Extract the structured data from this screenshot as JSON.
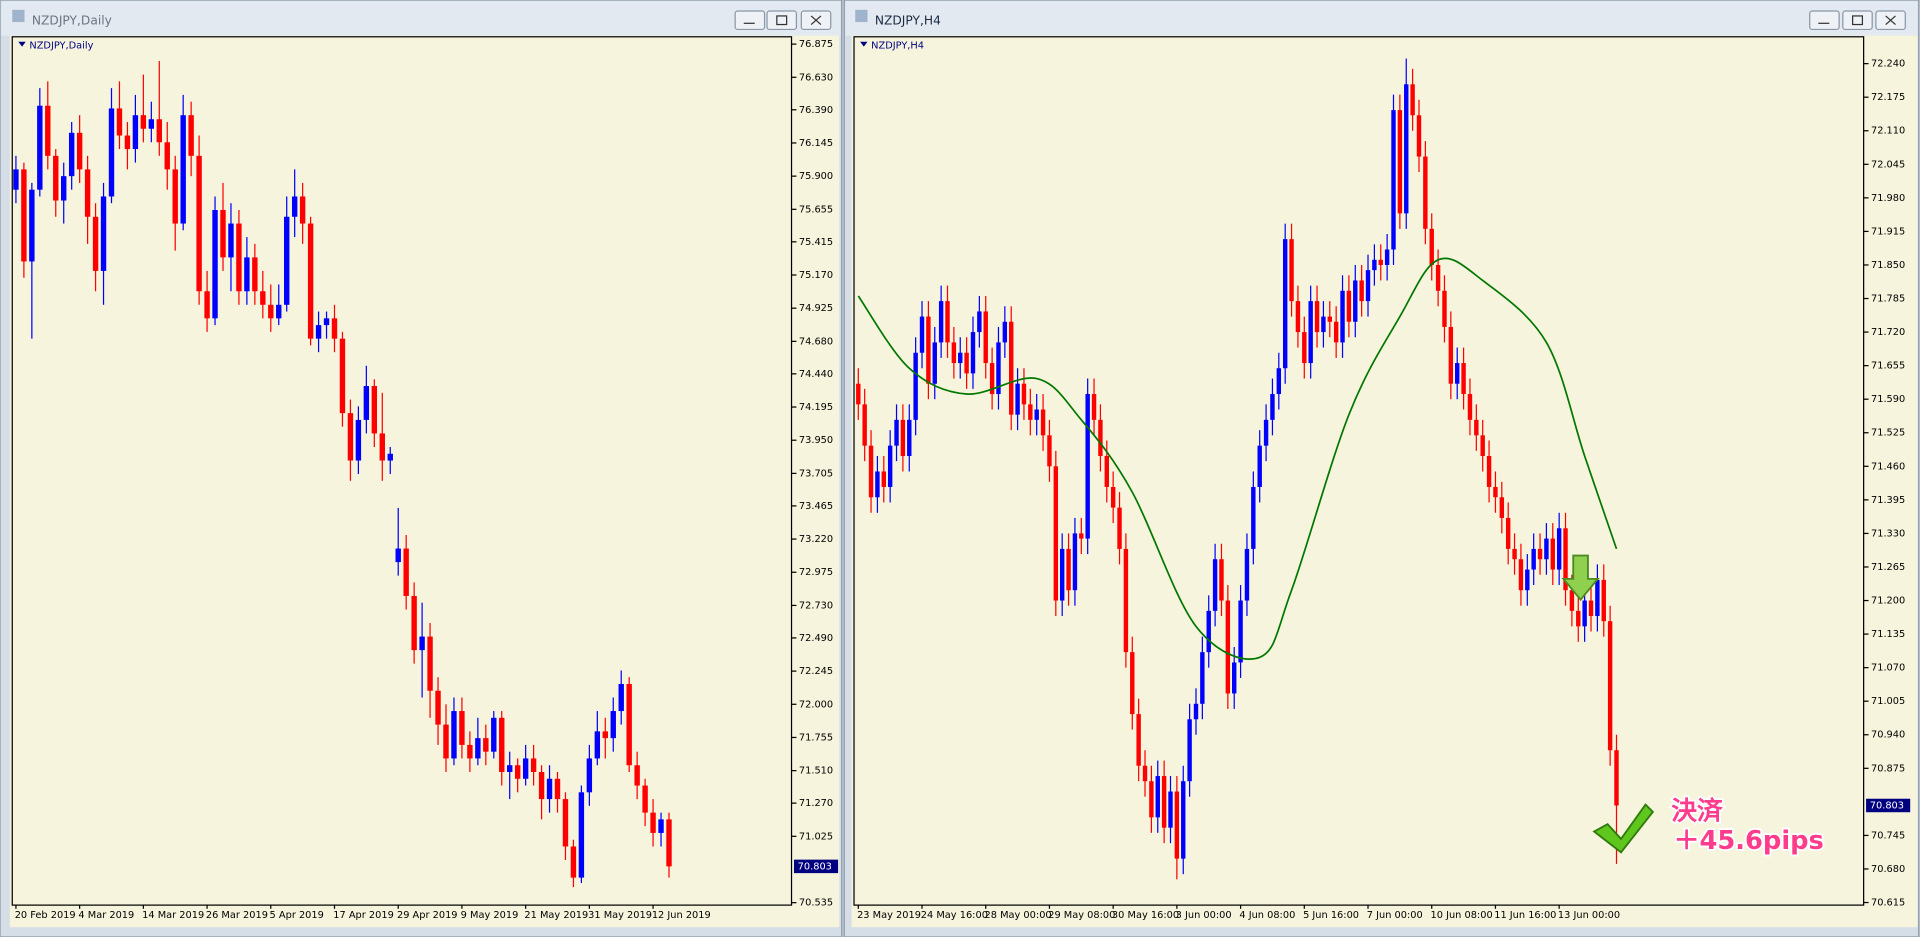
{
  "chart_data": [
    {
      "type": "candlestick",
      "title": "NZDJPY,Daily",
      "colors": {
        "up": "#0000ff",
        "down": "#ff0000"
      },
      "ylim": [
        70.517,
        76.929
      ],
      "yticks": [
        76.875,
        {
          "value": 76.63,
          "label": "76.630"
        },
        {
          "value": 76.39,
          "label": "76.390"
        },
        76.145,
        {
          "value": 75.9,
          "label": "75.900"
        },
        75.655,
        75.415,
        {
          "value": 75.17,
          "label": "75.170"
        },
        74.925,
        {
          "value": 74.68,
          "label": "74.680"
        },
        {
          "value": 74.44,
          "label": "74.440"
        },
        74.195,
        {
          "value": 73.95,
          "label": "73.950"
        },
        73.705,
        73.465,
        {
          "value": 73.22,
          "label": "73.220"
        },
        72.975,
        {
          "value": 72.73,
          "label": "72.730"
        },
        {
          "value": 72.49,
          "label": "72.490"
        },
        72.245,
        {
          "value": 72,
          "label": "72.000"
        },
        71.755,
        {
          "value": 71.51,
          "label": "71.510"
        },
        {
          "value": 71.27,
          "label": "71.270"
        },
        71.025,
        70.535
      ],
      "current_price": 70.803,
      "categories": [
        "20 Feb 2019",
        null,
        null,
        null,
        null,
        null,
        null,
        null,
        "4 Mar 2019",
        null,
        null,
        null,
        null,
        null,
        null,
        null,
        "14 Mar 2019",
        null,
        null,
        null,
        null,
        null,
        null,
        null,
        "26 Mar 2019",
        null,
        null,
        null,
        null,
        null,
        null,
        null,
        "5 Apr 2019",
        null,
        null,
        null,
        null,
        null,
        null,
        null,
        "17 Apr 2019",
        null,
        null,
        null,
        null,
        null,
        null,
        null,
        "29 Apr 2019",
        null,
        null,
        null,
        null,
        null,
        null,
        null,
        "9 May 2019",
        null,
        null,
        null,
        null,
        null,
        null,
        null,
        "21 May 2019",
        null,
        null,
        null,
        null,
        null,
        null,
        null,
        "31 May 2019",
        null,
        null,
        null,
        null,
        null,
        null,
        null,
        "12 Jun 2019",
        null,
        null
      ],
      "open": [
        75.8,
        75.95,
        75.27,
        75.8,
        76.42,
        76.05,
        75.72,
        75.9,
        76.22,
        75.95,
        75.6,
        75.2,
        75.75,
        76.4,
        76.2,
        76.1,
        76.35,
        76.25,
        76.32,
        76.15,
        75.95,
        75.55,
        76.35,
        76.05,
        75.05,
        74.85,
        75.65,
        75.3,
        75.55,
        75.05,
        75.3,
        75.05,
        74.95,
        74.85,
        74.95,
        75.6,
        75.75,
        75.55,
        74.7,
        74.8,
        74.85,
        74.7,
        74.15,
        73.8,
        74.1,
        74.35,
        74.0,
        73.8,
        73.05,
        73.15,
        72.8,
        72.4,
        72.5,
        72.1,
        71.85,
        71.6,
        71.95,
        71.7,
        71.6,
        71.75,
        71.65,
        71.9,
        71.5,
        71.55,
        71.45,
        71.6,
        71.5,
        71.3,
        71.45,
        71.3,
        70.95,
        70.72,
        71.35,
        71.6,
        71.8,
        71.75,
        71.95,
        72.15,
        71.55,
        71.4,
        71.2,
        71.05,
        71.15
      ],
      "high": [
        76.05,
        76.0,
        75.85,
        76.55,
        76.6,
        76.1,
        76.0,
        76.3,
        76.35,
        76.05,
        75.7,
        75.85,
        76.55,
        76.6,
        76.3,
        76.5,
        76.65,
        76.45,
        76.75,
        76.3,
        76.05,
        76.5,
        76.45,
        76.2,
        75.2,
        75.75,
        75.85,
        75.7,
        75.65,
        75.45,
        75.4,
        75.2,
        75.1,
        75.1,
        75.75,
        75.95,
        75.85,
        75.6,
        74.9,
        74.9,
        74.95,
        74.75,
        74.25,
        74.2,
        74.5,
        74.4,
        74.3,
        73.9,
        73.45,
        73.25,
        72.9,
        72.75,
        72.6,
        72.2,
        72.0,
        72.05,
        72.05,
        71.8,
        71.9,
        71.85,
        71.95,
        71.95,
        71.65,
        71.6,
        71.7,
        71.7,
        71.55,
        71.55,
        71.5,
        71.35,
        71.0,
        71.4,
        71.7,
        71.95,
        71.9,
        72.05,
        72.25,
        72.2,
        71.65,
        71.45,
        71.3,
        71.2,
        71.2
      ],
      "low": [
        75.7,
        75.15,
        74.7,
        75.75,
        75.95,
        75.6,
        75.55,
        75.8,
        75.85,
        75.4,
        75.05,
        74.95,
        75.7,
        76.1,
        75.95,
        76.0,
        76.15,
        76.15,
        76.05,
        75.8,
        75.35,
        75.5,
        75.9,
        74.95,
        74.75,
        74.8,
        75.2,
        75.05,
        74.95,
        74.95,
        74.95,
        74.85,
        74.75,
        74.8,
        74.9,
        75.45,
        75.4,
        74.65,
        74.6,
        74.7,
        74.6,
        74.05,
        73.65,
        73.7,
        74.0,
        73.9,
        73.65,
        73.7,
        72.95,
        72.7,
        72.3,
        72.05,
        71.9,
        71.7,
        71.5,
        71.55,
        71.6,
        71.5,
        71.55,
        71.55,
        71.6,
        71.4,
        71.3,
        71.35,
        71.4,
        71.4,
        71.15,
        71.2,
        71.2,
        70.85,
        70.65,
        70.68,
        71.25,
        71.55,
        71.6,
        71.65,
        71.85,
        71.5,
        71.3,
        71.1,
        70.95,
        70.95,
        70.72
      ],
      "close": [
        75.95,
        75.27,
        75.8,
        76.42,
        76.05,
        75.72,
        75.9,
        76.22,
        75.95,
        75.6,
        75.2,
        75.75,
        76.4,
        76.2,
        76.1,
        76.35,
        76.25,
        76.32,
        76.15,
        75.95,
        75.55,
        76.35,
        76.05,
        75.05,
        74.85,
        75.65,
        75.3,
        75.55,
        75.05,
        75.3,
        75.05,
        74.95,
        74.85,
        74.95,
        75.6,
        75.75,
        75.55,
        74.7,
        74.8,
        74.85,
        74.7,
        74.15,
        73.8,
        74.1,
        74.35,
        74.0,
        73.8,
        73.85,
        73.15,
        72.8,
        72.4,
        72.5,
        72.1,
        71.85,
        71.6,
        71.95,
        71.7,
        71.6,
        71.75,
        71.65,
        71.9,
        71.5,
        71.55,
        71.45,
        71.6,
        71.5,
        71.3,
        71.45,
        71.3,
        70.95,
        70.72,
        71.35,
        71.6,
        71.8,
        71.75,
        71.95,
        72.15,
        71.55,
        71.4,
        71.2,
        71.05,
        71.15,
        70.803
      ]
    },
    {
      "type": "candlestick",
      "title": "NZDJPY,H4",
      "colors": {
        "up": "#0000ff",
        "down": "#ff0000"
      },
      "ylim": [
        70.61,
        72.292
      ],
      "yticks": [
        {
          "value": 72.24,
          "label": "72.240"
        },
        72.175,
        {
          "value": 72.11,
          "label": "72.110"
        },
        72.045,
        {
          "value": 71.98,
          "label": "71.980"
        },
        71.915,
        {
          "value": 71.85,
          "label": "71.850"
        },
        71.785,
        {
          "value": 71.72,
          "label": "71.720"
        },
        71.655,
        {
          "value": 71.59,
          "label": "71.590"
        },
        71.525,
        {
          "value": 71.46,
          "label": "71.460"
        },
        71.395,
        {
          "value": 71.33,
          "label": "71.330"
        },
        71.265,
        {
          "value": 71.2,
          "label": "71.200"
        },
        71.135,
        {
          "value": 71.07,
          "label": "71.070"
        },
        71.005,
        {
          "value": 70.94,
          "label": "70.940"
        },
        70.875,
        70.745,
        {
          "value": 70.68,
          "label": "70.680"
        },
        70.615
      ],
      "current_price": 70.803,
      "categories": [
        "23 May 2019",
        null,
        null,
        null,
        null,
        null,
        null,
        null,
        null,
        null,
        "24 May 16:00",
        null,
        null,
        null,
        null,
        null,
        null,
        null,
        null,
        null,
        "28 May 00:00",
        null,
        null,
        null,
        null,
        null,
        null,
        null,
        null,
        null,
        "29 May 08:00",
        null,
        null,
        null,
        null,
        null,
        null,
        null,
        null,
        null,
        "30 May 16:00",
        null,
        null,
        null,
        null,
        null,
        null,
        null,
        null,
        null,
        "3 Jun 00:00",
        null,
        null,
        null,
        null,
        null,
        null,
        null,
        null,
        null,
        "4 Jun 08:00",
        null,
        null,
        null,
        null,
        null,
        null,
        null,
        null,
        null,
        "5 Jun 16:00",
        null,
        null,
        null,
        null,
        null,
        null,
        null,
        null,
        null,
        "7 Jun 00:00",
        null,
        null,
        null,
        null,
        null,
        null,
        null,
        null,
        null,
        "10 Jun 08:00",
        null,
        null,
        null,
        null,
        null,
        null,
        null,
        null,
        null,
        "11 Jun 16:00",
        null,
        null,
        null,
        null,
        null,
        null,
        null,
        null,
        null,
        "13 Jun 00:00",
        null,
        null,
        null,
        null,
        null,
        null,
        null,
        null,
        null
      ],
      "open": [
        71.62,
        71.58,
        71.5,
        71.4,
        71.45,
        71.42,
        71.5,
        71.55,
        71.48,
        71.55,
        71.68,
        71.75,
        71.62,
        71.7,
        71.78,
        71.7,
        71.66,
        71.68,
        71.64,
        71.72,
        71.76,
        71.66,
        71.6,
        71.7,
        71.74,
        71.56,
        71.62,
        71.58,
        71.55,
        71.57,
        71.52,
        71.46,
        71.2,
        71.3,
        71.22,
        71.33,
        71.32,
        71.6,
        71.55,
        71.48,
        71.42,
        71.38,
        71.3,
        71.1,
        70.98,
        70.88,
        70.85,
        70.78,
        70.86,
        70.76,
        70.83,
        70.7,
        70.85,
        70.97,
        71.0,
        71.1,
        71.18,
        71.28,
        71.2,
        71.02,
        71.08,
        71.2,
        71.3,
        71.42,
        71.5,
        71.55,
        71.6,
        71.65,
        71.9,
        71.78,
        71.72,
        71.66,
        71.78,
        71.72,
        71.75,
        71.74,
        71.7,
        71.8,
        71.74,
        71.82,
        71.78,
        71.84,
        71.86,
        71.85,
        71.88,
        72.15,
        71.95,
        72.2,
        72.14,
        72.06,
        71.92,
        71.85,
        71.8,
        71.73,
        71.62,
        71.66,
        71.6,
        71.55,
        71.52,
        71.48,
        71.42,
        71.4,
        71.36,
        71.3,
        71.28,
        71.22,
        71.26,
        71.3,
        71.28,
        71.32,
        71.26,
        71.34,
        71.22,
        71.18,
        71.15,
        71.2,
        71.17,
        71.24,
        71.16,
        70.91
      ],
      "high": [
        71.65,
        71.61,
        71.53,
        71.48,
        71.48,
        71.53,
        71.58,
        71.58,
        71.58,
        71.71,
        71.78,
        71.78,
        71.73,
        71.81,
        71.81,
        71.73,
        71.71,
        71.71,
        71.75,
        71.79,
        71.79,
        71.69,
        71.73,
        71.77,
        71.77,
        71.65,
        71.65,
        71.61,
        71.6,
        71.6,
        71.55,
        71.49,
        71.33,
        71.33,
        71.36,
        71.36,
        71.63,
        71.63,
        71.58,
        71.51,
        71.45,
        71.41,
        71.33,
        71.13,
        71.01,
        70.91,
        70.88,
        70.89,
        70.89,
        70.86,
        70.86,
        70.88,
        71.0,
        71.03,
        71.13,
        71.21,
        71.31,
        71.31,
        71.23,
        71.11,
        71.23,
        71.33,
        71.45,
        71.53,
        71.58,
        71.63,
        71.68,
        71.93,
        71.93,
        71.81,
        71.75,
        71.81,
        71.81,
        71.78,
        71.78,
        71.77,
        71.83,
        71.83,
        71.85,
        71.85,
        71.87,
        71.89,
        71.89,
        71.91,
        72.18,
        72.18,
        72.25,
        72.23,
        72.17,
        72.09,
        71.95,
        71.88,
        71.83,
        71.76,
        71.69,
        71.69,
        71.63,
        71.58,
        71.55,
        71.51,
        71.45,
        71.43,
        71.39,
        71.33,
        71.31,
        71.29,
        71.33,
        71.33,
        71.35,
        71.35,
        71.37,
        71.37,
        71.25,
        71.21,
        71.23,
        71.23,
        71.27,
        71.27,
        71.19,
        70.94
      ],
      "low": [
        71.55,
        71.47,
        71.37,
        71.37,
        71.39,
        71.39,
        71.47,
        71.45,
        71.45,
        71.52,
        71.65,
        71.59,
        71.59,
        71.67,
        71.67,
        71.63,
        71.63,
        71.61,
        71.61,
        71.69,
        71.63,
        71.57,
        71.57,
        71.67,
        71.53,
        71.53,
        71.55,
        71.52,
        71.52,
        71.49,
        71.43,
        71.17,
        71.17,
        71.19,
        71.19,
        71.29,
        71.29,
        71.52,
        71.45,
        71.39,
        71.35,
        71.27,
        71.07,
        70.95,
        70.85,
        70.82,
        70.75,
        70.75,
        70.73,
        70.73,
        70.66,
        70.67,
        70.82,
        70.94,
        70.97,
        71.07,
        71.15,
        71.17,
        70.99,
        70.99,
        71.05,
        71.17,
        71.27,
        71.39,
        71.47,
        71.52,
        71.57,
        71.62,
        71.75,
        71.69,
        71.63,
        71.63,
        71.69,
        71.69,
        71.71,
        71.67,
        71.67,
        71.71,
        71.71,
        71.75,
        71.75,
        71.81,
        71.82,
        71.82,
        71.85,
        71.92,
        71.92,
        72.11,
        72.03,
        71.89,
        71.82,
        71.77,
        71.7,
        71.59,
        71.59,
        71.57,
        71.52,
        71.49,
        71.45,
        71.39,
        71.37,
        71.33,
        71.27,
        71.25,
        71.19,
        71.19,
        71.23,
        71.25,
        71.25,
        71.23,
        71.23,
        71.19,
        71.15,
        71.12,
        71.12,
        71.14,
        71.14,
        71.13,
        70.88,
        70.69
      ],
      "close": [
        71.58,
        71.5,
        71.4,
        71.45,
        71.42,
        71.5,
        71.55,
        71.48,
        71.55,
        71.68,
        71.75,
        71.62,
        71.7,
        71.78,
        71.7,
        71.66,
        71.68,
        71.64,
        71.72,
        71.76,
        71.66,
        71.6,
        71.7,
        71.74,
        71.56,
        71.62,
        71.58,
        71.55,
        71.57,
        71.52,
        71.46,
        71.2,
        71.3,
        71.22,
        71.33,
        71.32,
        71.6,
        71.55,
        71.48,
        71.42,
        71.38,
        71.3,
        71.1,
        70.98,
        70.88,
        70.85,
        70.78,
        70.86,
        70.76,
        70.83,
        70.7,
        70.85,
        70.97,
        71.0,
        71.1,
        71.18,
        71.28,
        71.2,
        71.02,
        71.08,
        71.2,
        71.3,
        71.42,
        71.5,
        71.55,
        71.6,
        71.65,
        71.9,
        71.78,
        71.72,
        71.66,
        71.78,
        71.72,
        71.75,
        71.74,
        71.7,
        71.8,
        71.74,
        71.82,
        71.78,
        71.84,
        71.86,
        71.85,
        71.88,
        72.15,
        71.95,
        72.2,
        72.14,
        72.06,
        71.92,
        71.85,
        71.8,
        71.73,
        71.62,
        71.66,
        71.6,
        71.55,
        71.52,
        71.48,
        71.42,
        71.4,
        71.36,
        71.3,
        71.28,
        71.22,
        71.26,
        71.3,
        71.28,
        71.32,
        71.26,
        71.34,
        71.22,
        71.18,
        71.15,
        71.2,
        71.17,
        71.24,
        71.16,
        70.91,
        70.803
      ],
      "ma": {
        "color": "#007800",
        "x": [
          0,
          8,
          17,
          28,
          35,
          43,
          53,
          63,
          68,
          77,
          85,
          91,
          98,
          108,
          114,
          119
        ],
        "values": [
          71.79,
          71.65,
          71.6,
          71.63,
          71.55,
          71.41,
          71.15,
          71.09,
          71.22,
          71.56,
          71.75,
          71.86,
          71.82,
          71.7,
          71.48,
          71.3
        ]
      },
      "annotations": [
        "決済",
        "＋45.6pips"
      ]
    }
  ]
}
